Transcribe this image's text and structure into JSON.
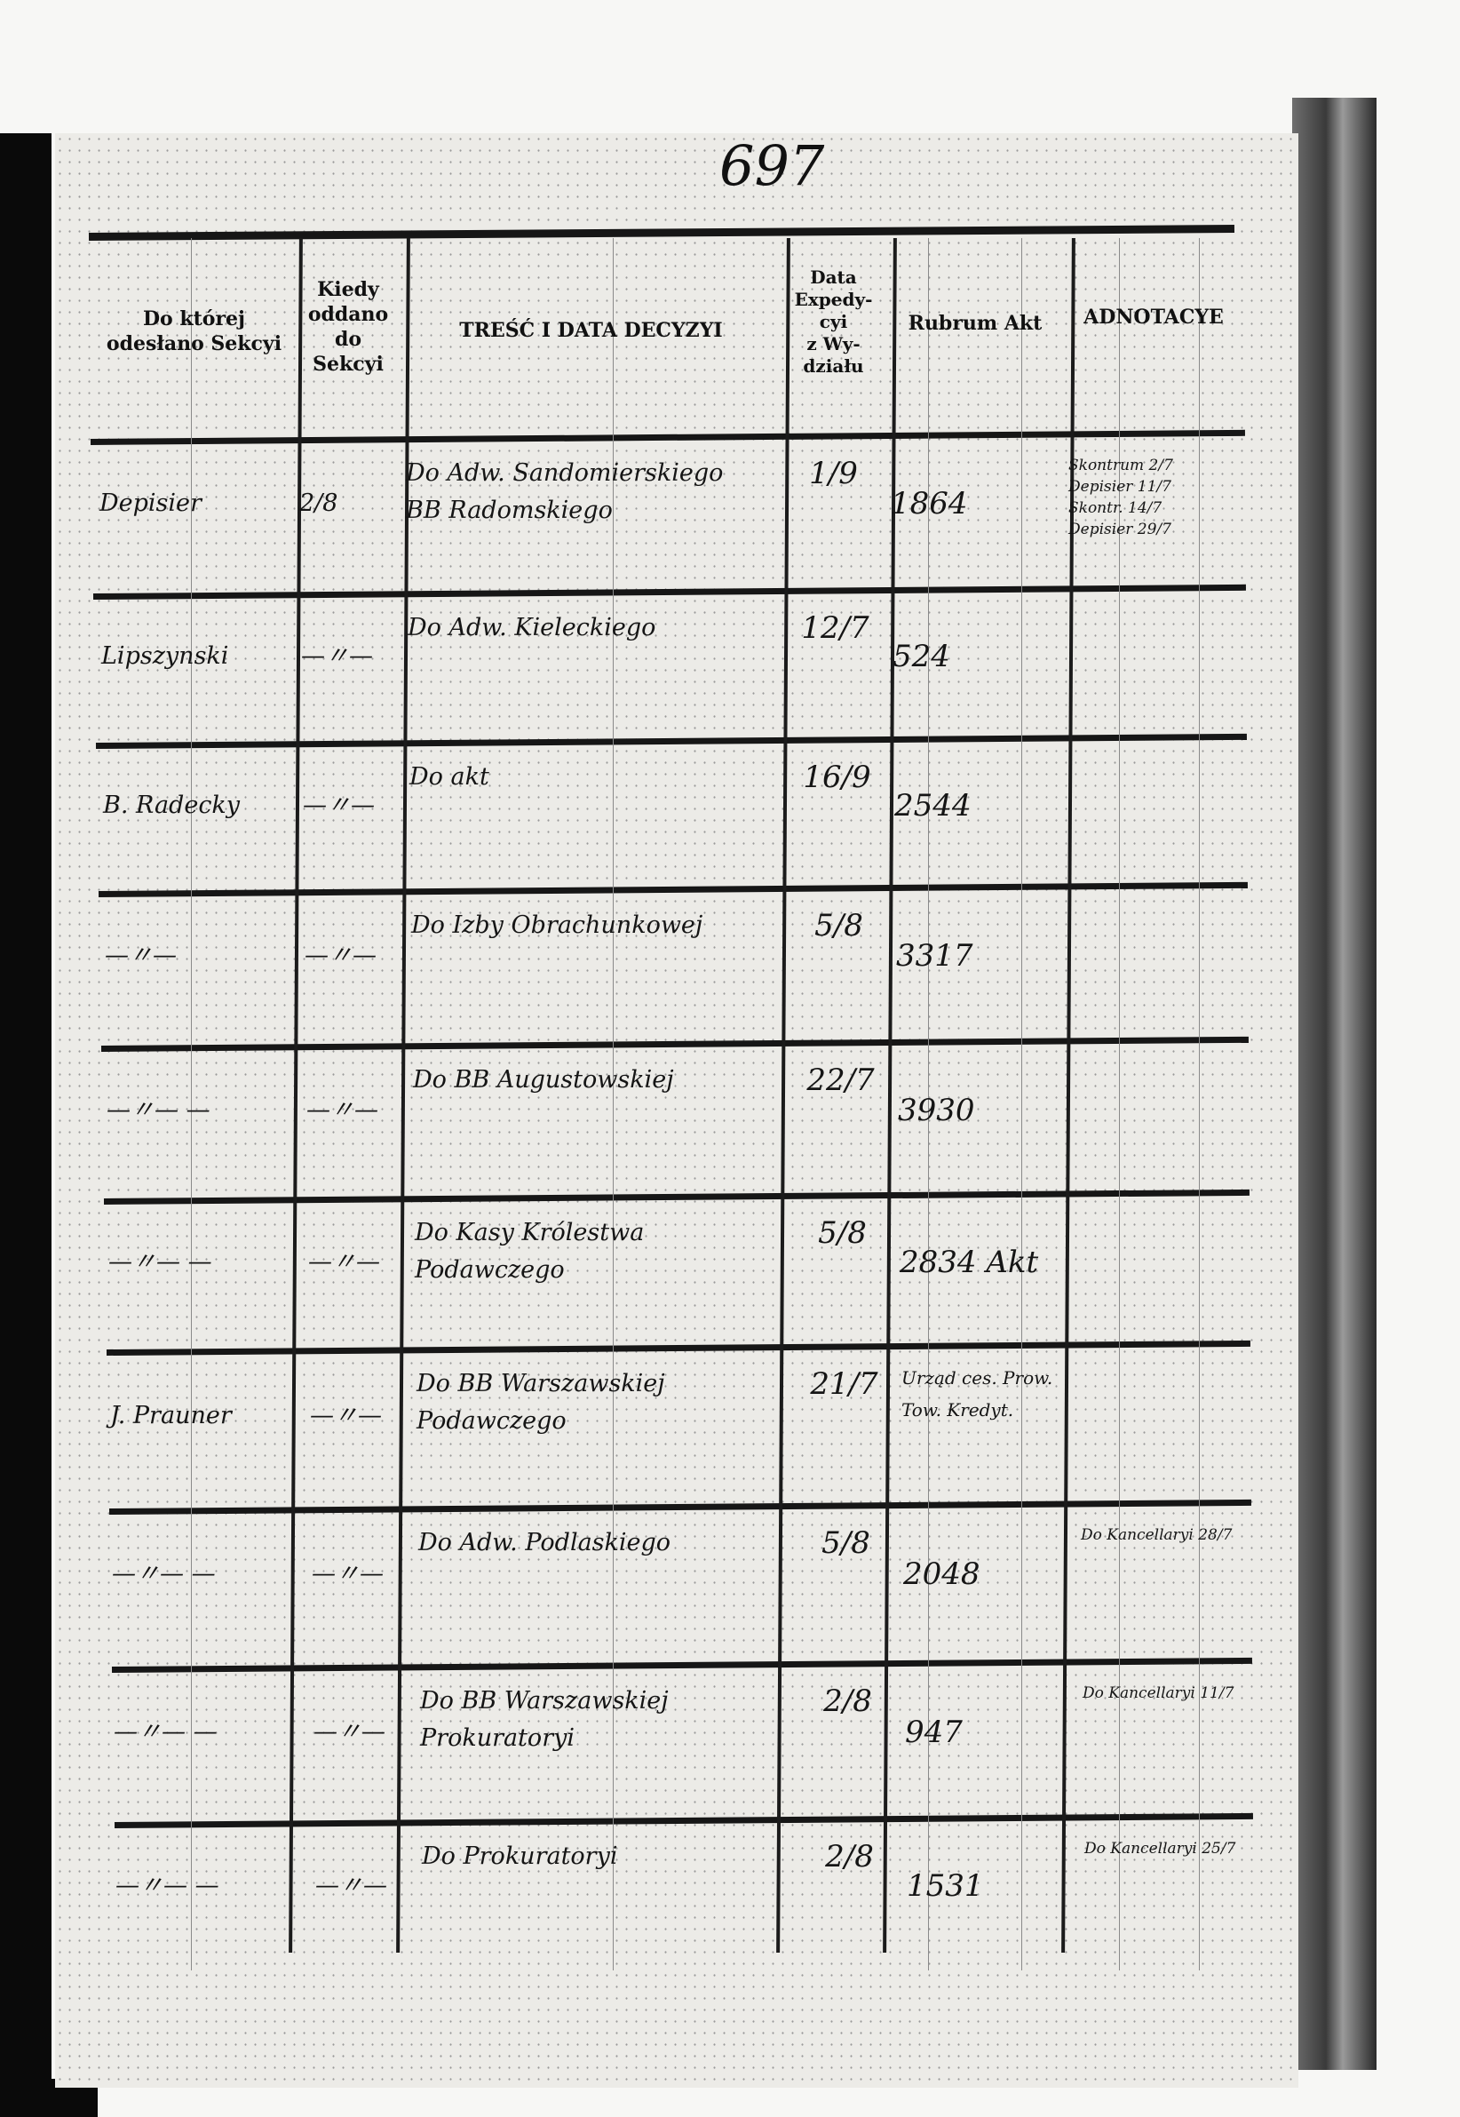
{
  "page_number": "697",
  "headers": {
    "section": "Do której\nodesłano Sekcyi",
    "when": "Kiedy\noddano\ndo\nSekcyi",
    "content": "TREŚĆ I DATA DECYZYI",
    "expedition": "Data\nExpedy-\ncyi\nz Wy-\ndziału",
    "rubrum": "Rubrum Akt",
    "annotations": "ADNOTACYE"
  },
  "rows": [
    {
      "section": "Depisier",
      "when": "2/8",
      "content": "Do Adw. Sandomierskiego\nBB Radomskiego",
      "expedition": "1/9",
      "rubrum": "1864",
      "annotations": "Skontrum 2/7\nDepisier 11/7\nSkontr. 14/7\nDepisier 29/7"
    },
    {
      "section": "Lipszynski",
      "when": "—〃—",
      "content": "Do Adw. Kieleckiego",
      "expedition": "12/7",
      "rubrum": "524",
      "annotations": ""
    },
    {
      "section": "B. Radecky",
      "when": "—〃—",
      "content": "Do akt",
      "expedition": "16/9",
      "rubrum": "2544",
      "annotations": ""
    },
    {
      "section": "—〃—",
      "when": "—〃—",
      "content": "Do Izby Obrachunkowej",
      "expedition": "5/8",
      "rubrum": "3317",
      "annotations": ""
    },
    {
      "section": "—〃— —",
      "when": "—〃—",
      "content": "Do BB Augustowskiej",
      "expedition": "22/7",
      "rubrum": "3930",
      "annotations": ""
    },
    {
      "section": "—〃— —",
      "when": "—〃—",
      "content": "Do Kasy Królestwa\nPodawczego",
      "expedition": "5/8",
      "rubrum": "2834 Akt",
      "annotations": ""
    },
    {
      "section": "J. Prauner",
      "when": "—〃—",
      "content": "Do BB Warszawskiej\nPodawczego",
      "expedition": "21/7",
      "rubrum": "Urząd ces. Prow.\nTow. Kredyt.",
      "annotations": ""
    },
    {
      "section": "—〃— —",
      "when": "—〃—",
      "content": "Do Adw. Podlaskiego",
      "expedition": "5/8",
      "rubrum": "2048",
      "annotations": "Do Kancellaryi 28/7"
    },
    {
      "section": "—〃— —",
      "when": "—〃—",
      "content": "Do BB Warszawskiej\nProkuratoryi",
      "expedition": "2/8",
      "rubrum": "947",
      "annotations": "Do Kancellaryi 11/7"
    },
    {
      "section": "—〃— —",
      "when": "—〃—",
      "content": "Do Prokuratoryi",
      "expedition": "2/8",
      "rubrum": "1531",
      "annotations": "Do Kancellaryi 25/7"
    }
  ]
}
